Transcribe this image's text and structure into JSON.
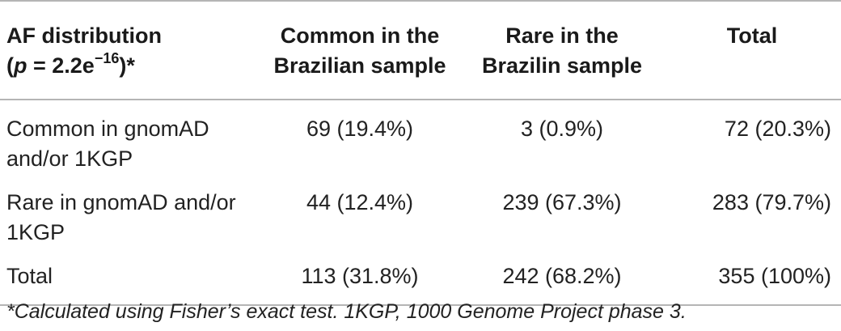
{
  "header": {
    "col0_line1": "AF distribution",
    "col0_line2_open": "(",
    "col0_line2_p": "p",
    "col0_line2_mid": " = 2.2e",
    "col0_line2_exp": "−16",
    "col0_line2_close": ")*",
    "col1_line1": "Common in the",
    "col1_line2": "Brazilian sample",
    "col2_line1": "Rare in the",
    "col2_line2": "Brazilin sample",
    "col3": "Total"
  },
  "rows": [
    {
      "label_line1": "Common in gnomAD",
      "label_line2": "and/or 1KGP",
      "common_br": "69 (19.4%)",
      "rare_br": "3 (0.9%)",
      "total": "72 (20.3%)"
    },
    {
      "label_line1": "Rare in gnomAD and/or",
      "label_line2": "1KGP",
      "common_br": "44 (12.4%)",
      "rare_br": "239 (67.3%)",
      "total": "283 (79.7%)"
    },
    {
      "label_line1": "Total",
      "label_line2": "",
      "common_br": "113 (31.8%)",
      "rare_br": "242 (68.2%)",
      "total": "355 (100%)"
    }
  ],
  "footnote": "*Calculated using Fisher’s exact test. 1KGP, 1000 Genome Project phase 3."
}
